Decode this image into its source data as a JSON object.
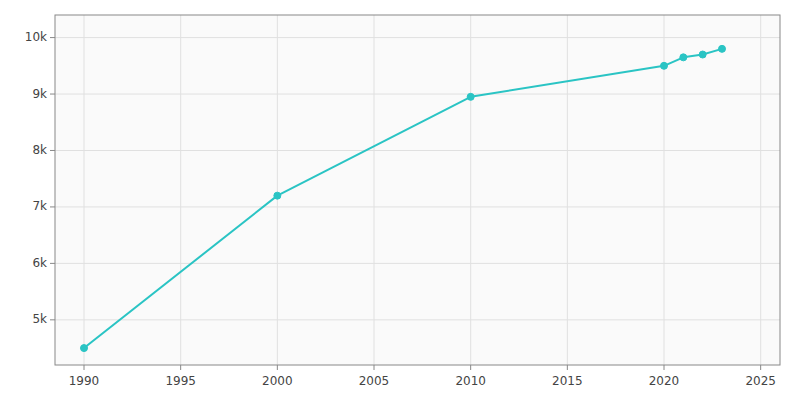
{
  "chart_data": {
    "type": "line",
    "x": [
      1990,
      2000,
      2010,
      2020,
      2021,
      2022,
      2023
    ],
    "values": [
      4500,
      7200,
      8950,
      9500,
      9650,
      9700,
      9800
    ],
    "color": "#2ac4c4",
    "marker": "circle",
    "xlim": [
      1988.5,
      2026
    ],
    "ylim": [
      4200,
      10400
    ],
    "xticks": [
      1990,
      1995,
      2000,
      2005,
      2010,
      2015,
      2020,
      2025
    ],
    "yticks": [
      {
        "value": 5000,
        "label": "5k"
      },
      {
        "value": 6000,
        "label": "6k"
      },
      {
        "value": 7000,
        "label": "7k"
      },
      {
        "value": 8000,
        "label": "8k"
      },
      {
        "value": 9000,
        "label": "9k"
      },
      {
        "value": 10000,
        "label": "10k"
      }
    ],
    "grid": true
  }
}
